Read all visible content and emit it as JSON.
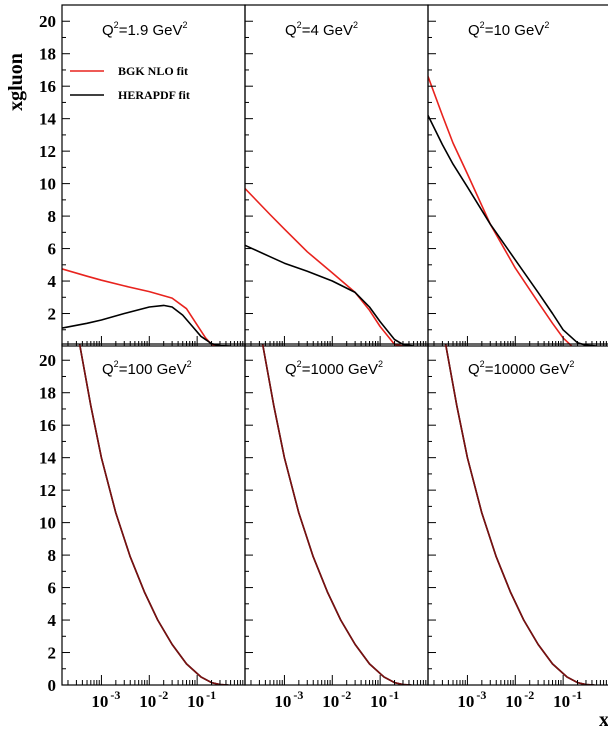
{
  "chart_data": {
    "type": "line",
    "ylabel": "xgluon",
    "xlabel": "x",
    "x_scale": "log",
    "xlim": [
      0.00015,
      1
    ],
    "ylim": [
      0,
      21
    ],
    "y_ticks": [
      "0",
      "2",
      "4",
      "6",
      "8",
      "10",
      "12",
      "14",
      "16",
      "18",
      "20"
    ],
    "x_tick_labels": [
      {
        "base": "10",
        "exp": "-3"
      },
      {
        "base": "10",
        "exp": "-2"
      },
      {
        "base": "10",
        "exp": "-1"
      }
    ],
    "legend": {
      "location": "top-left of first panel",
      "entries": [
        {
          "label": "BGK NLO fit",
          "color": "#e8231e"
        },
        {
          "label": "HERAPDF fit",
          "color": "#000000"
        }
      ]
    },
    "panels": [
      {
        "label": "Q²=1.9 GeV²",
        "q2_text": "Q",
        "q2_sup": "2",
        "q2_val": "=1.9 GeV",
        "unit_sup": "2",
        "series": [
          {
            "color": "#e8231e",
            "x": [
              0.00015,
              0.0005,
              0.001,
              0.003,
              0.01,
              0.03,
              0.06,
              0.1,
              0.15,
              0.2,
              0.3
            ],
            "y": [
              4.75,
              4.3,
              4.05,
              3.7,
              3.35,
              2.95,
              2.3,
              1.3,
              0.5,
              0.1,
              0
            ]
          },
          {
            "color": "#000000",
            "x": [
              0.00015,
              0.0005,
              0.001,
              0.003,
              0.01,
              0.02,
              0.03,
              0.05,
              0.08,
              0.12,
              0.2,
              0.3,
              0.5
            ],
            "y": [
              1.1,
              1.4,
              1.6,
              2.0,
              2.4,
              2.5,
              2.4,
              1.9,
              1.2,
              0.6,
              0.15,
              0.02,
              0
            ]
          }
        ]
      },
      {
        "label": "Q²=4 GeV²",
        "q2_text": "Q",
        "q2_sup": "2",
        "q2_val": "=4 GeV",
        "unit_sup": "2",
        "series": [
          {
            "color": "#e8231e",
            "x": [
              0.00015,
              0.0005,
              0.001,
              0.003,
              0.01,
              0.03,
              0.06,
              0.1,
              0.2,
              0.3
            ],
            "y": [
              9.7,
              8.1,
              7.2,
              5.8,
              4.5,
              3.3,
              2.2,
              1.2,
              0.1,
              0
            ]
          },
          {
            "color": "#000000",
            "x": [
              0.00015,
              0.0005,
              0.001,
              0.003,
              0.01,
              0.03,
              0.06,
              0.1,
              0.2,
              0.3,
              0.5
            ],
            "y": [
              6.2,
              5.5,
              5.1,
              4.6,
              4.0,
              3.3,
              2.4,
              1.5,
              0.4,
              0.1,
              0
            ]
          }
        ]
      },
      {
        "label": "Q²=10 GeV²",
        "q2_text": "Q",
        "q2_sup": "2",
        "q2_val": "=10 GeV",
        "unit_sup": "2",
        "series": [
          {
            "color": "#e8231e",
            "x": [
              0.00015,
              0.0003,
              0.0005,
              0.001,
              0.003,
              0.01,
              0.03,
              0.06,
              0.1,
              0.15
            ],
            "y": [
              16.6,
              14.2,
              12.5,
              10.6,
              7.5,
              4.8,
              2.7,
              1.4,
              0.5,
              0
            ]
          },
          {
            "color": "#000000",
            "x": [
              0.00015,
              0.0003,
              0.0005,
              0.001,
              0.003,
              0.01,
              0.03,
              0.06,
              0.1,
              0.2,
              0.3,
              0.5
            ],
            "y": [
              14.2,
              12.4,
              11.2,
              9.8,
              7.5,
              5.3,
              3.3,
              2.0,
              1.0,
              0.2,
              0.05,
              0
            ]
          }
        ]
      },
      {
        "label": "Q²=100 GeV²",
        "q2_text": "Q",
        "q2_sup": "2",
        "q2_val": "=100 GeV",
        "unit_sup": "2",
        "series": [
          {
            "color": "#000000",
            "x": [
              0.00035,
              0.0006,
              0.001,
              0.002,
              0.004,
              0.008,
              0.015,
              0.03,
              0.06,
              0.12,
              0.2,
              0.3,
              0.45
            ],
            "y": [
              21,
              17.2,
              14.0,
              10.6,
              7.9,
              5.7,
              4.0,
              2.5,
              1.3,
              0.5,
              0.15,
              0.03,
              0
            ]
          },
          {
            "color": "#7a1010",
            "x": [
              0.00035,
              0.0006,
              0.001,
              0.002,
              0.004,
              0.008,
              0.015,
              0.03,
              0.06,
              0.12,
              0.2,
              0.3,
              0.45
            ],
            "y": [
              21,
              17.2,
              14.0,
              10.6,
              7.9,
              5.7,
              4.0,
              2.5,
              1.3,
              0.5,
              0.15,
              0.03,
              0
            ]
          }
        ]
      },
      {
        "label": "Q²=1000 GeV²",
        "q2_text": "Q",
        "q2_sup": "2",
        "q2_val": "=1000 GeV",
        "unit_sup": "2",
        "series": [
          {
            "color": "#000000",
            "x": [
              0.00035,
              0.0006,
              0.001,
              0.002,
              0.004,
              0.008,
              0.015,
              0.03,
              0.06,
              0.12,
              0.2,
              0.3,
              0.45
            ],
            "y": [
              21,
              17.2,
              14.0,
              10.6,
              7.9,
              5.7,
              4.0,
              2.5,
              1.3,
              0.5,
              0.15,
              0.03,
              0
            ]
          },
          {
            "color": "#7a1010",
            "x": [
              0.00035,
              0.0006,
              0.001,
              0.002,
              0.004,
              0.008,
              0.015,
              0.03,
              0.06,
              0.12,
              0.2,
              0.3,
              0.45
            ],
            "y": [
              21,
              17.2,
              14.0,
              10.6,
              7.9,
              5.7,
              4.0,
              2.5,
              1.3,
              0.5,
              0.15,
              0.03,
              0
            ]
          }
        ]
      },
      {
        "label": "Q²=10000 GeV²",
        "q2_text": "Q",
        "q2_sup": "2",
        "q2_val": "=10000 GeV",
        "unit_sup": "2",
        "series": [
          {
            "color": "#000000",
            "x": [
              0.00035,
              0.0006,
              0.001,
              0.002,
              0.004,
              0.008,
              0.015,
              0.03,
              0.06,
              0.12,
              0.2,
              0.3,
              0.45
            ],
            "y": [
              21,
              17.2,
              14.0,
              10.6,
              7.9,
              5.7,
              4.0,
              2.5,
              1.3,
              0.5,
              0.15,
              0.03,
              0
            ]
          },
          {
            "color": "#7a1010",
            "x": [
              0.00035,
              0.0006,
              0.001,
              0.002,
              0.004,
              0.008,
              0.015,
              0.03,
              0.06,
              0.12,
              0.2,
              0.3,
              0.45
            ],
            "y": [
              21,
              17.2,
              14.0,
              10.6,
              7.9,
              5.7,
              4.0,
              2.5,
              1.3,
              0.5,
              0.15,
              0.03,
              0
            ]
          }
        ]
      }
    ]
  }
}
